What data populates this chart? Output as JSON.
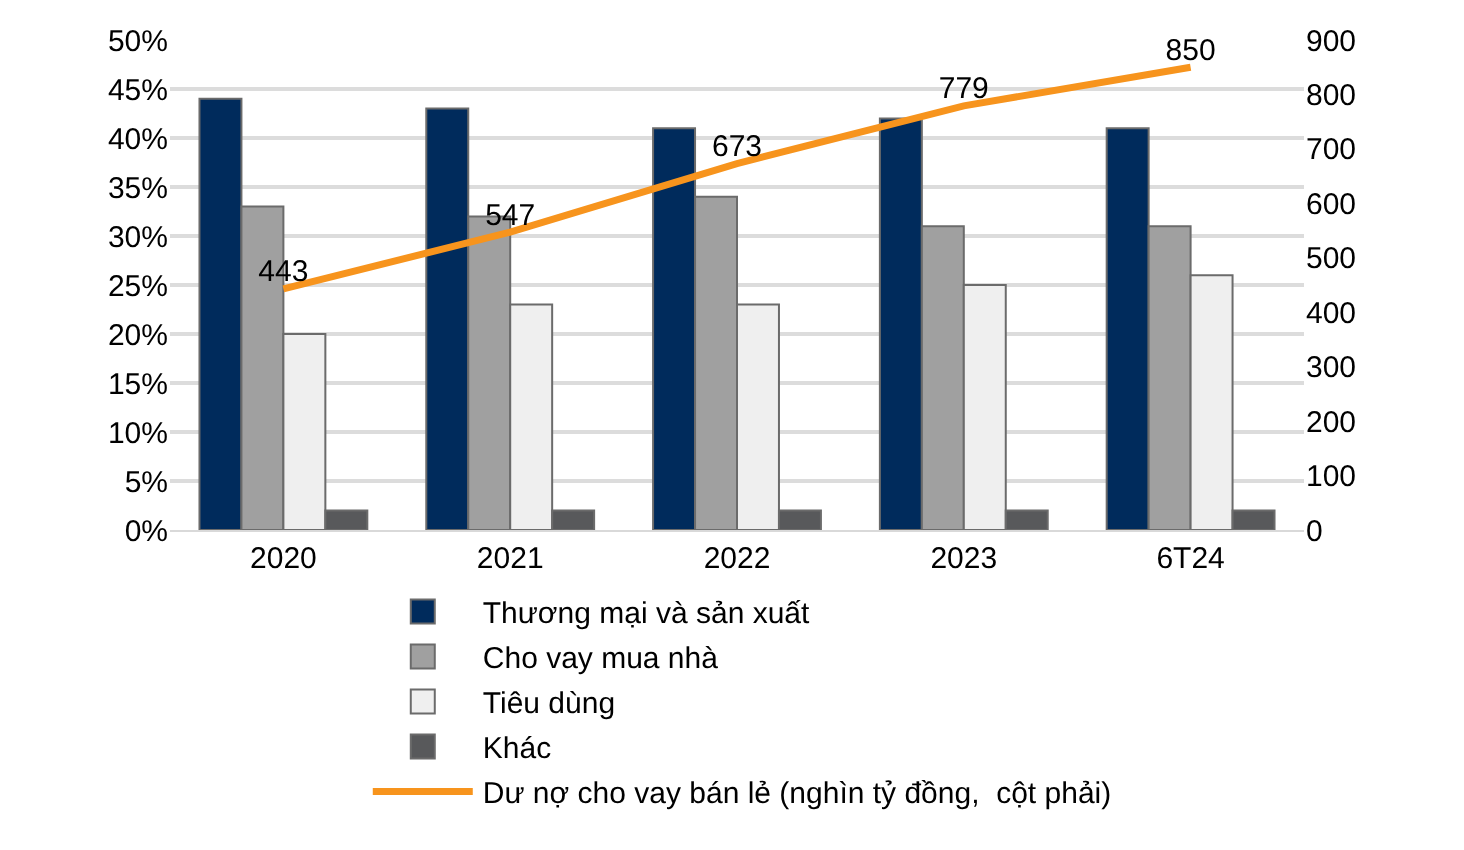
{
  "chart_data": {
    "type": "bar",
    "categories": [
      "2020",
      "2021",
      "2022",
      "2023",
      "6T24"
    ],
    "series": [
      {
        "name": "Thương mại và sản xuất",
        "color": "#002b5c",
        "values": [
          44,
          43,
          41,
          42,
          41
        ]
      },
      {
        "name": "Cho vay mua nhà",
        "color": "#a0a0a0",
        "values": [
          33,
          32,
          34,
          31,
          31
        ]
      },
      {
        "name": "Tiêu dùng",
        "color": "#efefef",
        "values": [
          20,
          23,
          23,
          25,
          26
        ]
      },
      {
        "name": "Khác",
        "color": "#58595b",
        "values": [
          2,
          2,
          2,
          2,
          2
        ]
      },
      {
        "name": "Dư nợ cho vay bán lẻ (nghìn tỷ đồng,  cột phải)",
        "type": "line",
        "axis": "y2",
        "color": "#f7941d",
        "values": [
          443,
          547,
          673,
          779,
          850
        ],
        "value_labels": [
          "443",
          "547",
          "673",
          "779",
          "850"
        ]
      }
    ],
    "ylim": [
      0,
      50
    ],
    "yticks": [
      {
        "value": 0,
        "label": "0%"
      },
      {
        "value": 5,
        "label": "5%"
      },
      {
        "value": 10,
        "label": "10%"
      },
      {
        "value": 15,
        "label": "15%"
      },
      {
        "value": 20,
        "label": "20%"
      },
      {
        "value": 25,
        "label": "25%"
      },
      {
        "value": 30,
        "label": "30%"
      },
      {
        "value": 35,
        "label": "35%"
      },
      {
        "value": 40,
        "label": "40%"
      },
      {
        "value": 45,
        "label": "45%"
      },
      {
        "value": 50,
        "label": "50%"
      }
    ],
    "y2lim": [
      0,
      900
    ],
    "y2ticks": [
      0,
      100,
      200,
      300,
      400,
      500,
      600,
      700,
      800,
      900
    ],
    "grid": "y",
    "legend": "bottom"
  }
}
